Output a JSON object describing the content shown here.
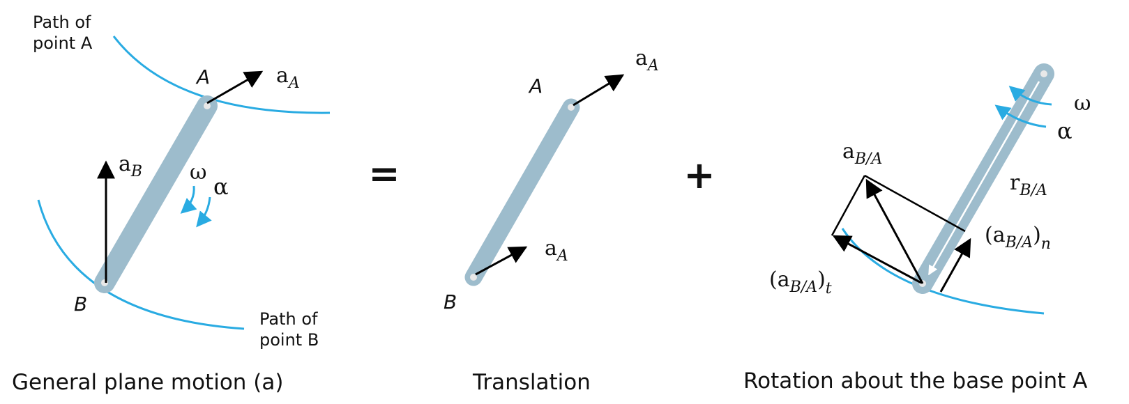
{
  "colors": {
    "path": "#29abe2",
    "link": "#9dbccc",
    "vector": "#000000",
    "pin": "#e8e8e8",
    "text": "#111111"
  },
  "panel_general": {
    "caption": "General plane motion (a)",
    "path_a_label": [
      "Path of",
      "point A"
    ],
    "path_b_label": [
      "Path of",
      "point B"
    ],
    "point_a": "A",
    "point_b": "B",
    "accel_a_base": "a",
    "accel_a_sub": "A",
    "accel_b_base": "a",
    "accel_b_sub": "B",
    "omega": "ω",
    "alpha": "α"
  },
  "equals_sign": "=",
  "plus_sign": "+",
  "panel_translation": {
    "caption": "Translation",
    "point_a": "A",
    "point_b": "B",
    "accel_top_base": "a",
    "accel_top_sub": "A",
    "accel_bottom_base": "a",
    "accel_bottom_sub": "A"
  },
  "panel_rotation": {
    "caption": "Rotation about the base point A",
    "omega": "ω",
    "alpha": "α",
    "a_ba_base": "a",
    "a_ba_sub": "B/A",
    "r_ba_base": "r",
    "r_ba_sub": "B/A",
    "a_ba_n_open": "(a",
    "a_ba_n_sub": "B/A",
    "a_ba_n_close": ")",
    "a_ba_n_comp": "n",
    "a_ba_t_open": "(a",
    "a_ba_t_sub": "B/A",
    "a_ba_t_close": ")",
    "a_ba_t_comp": "t"
  }
}
